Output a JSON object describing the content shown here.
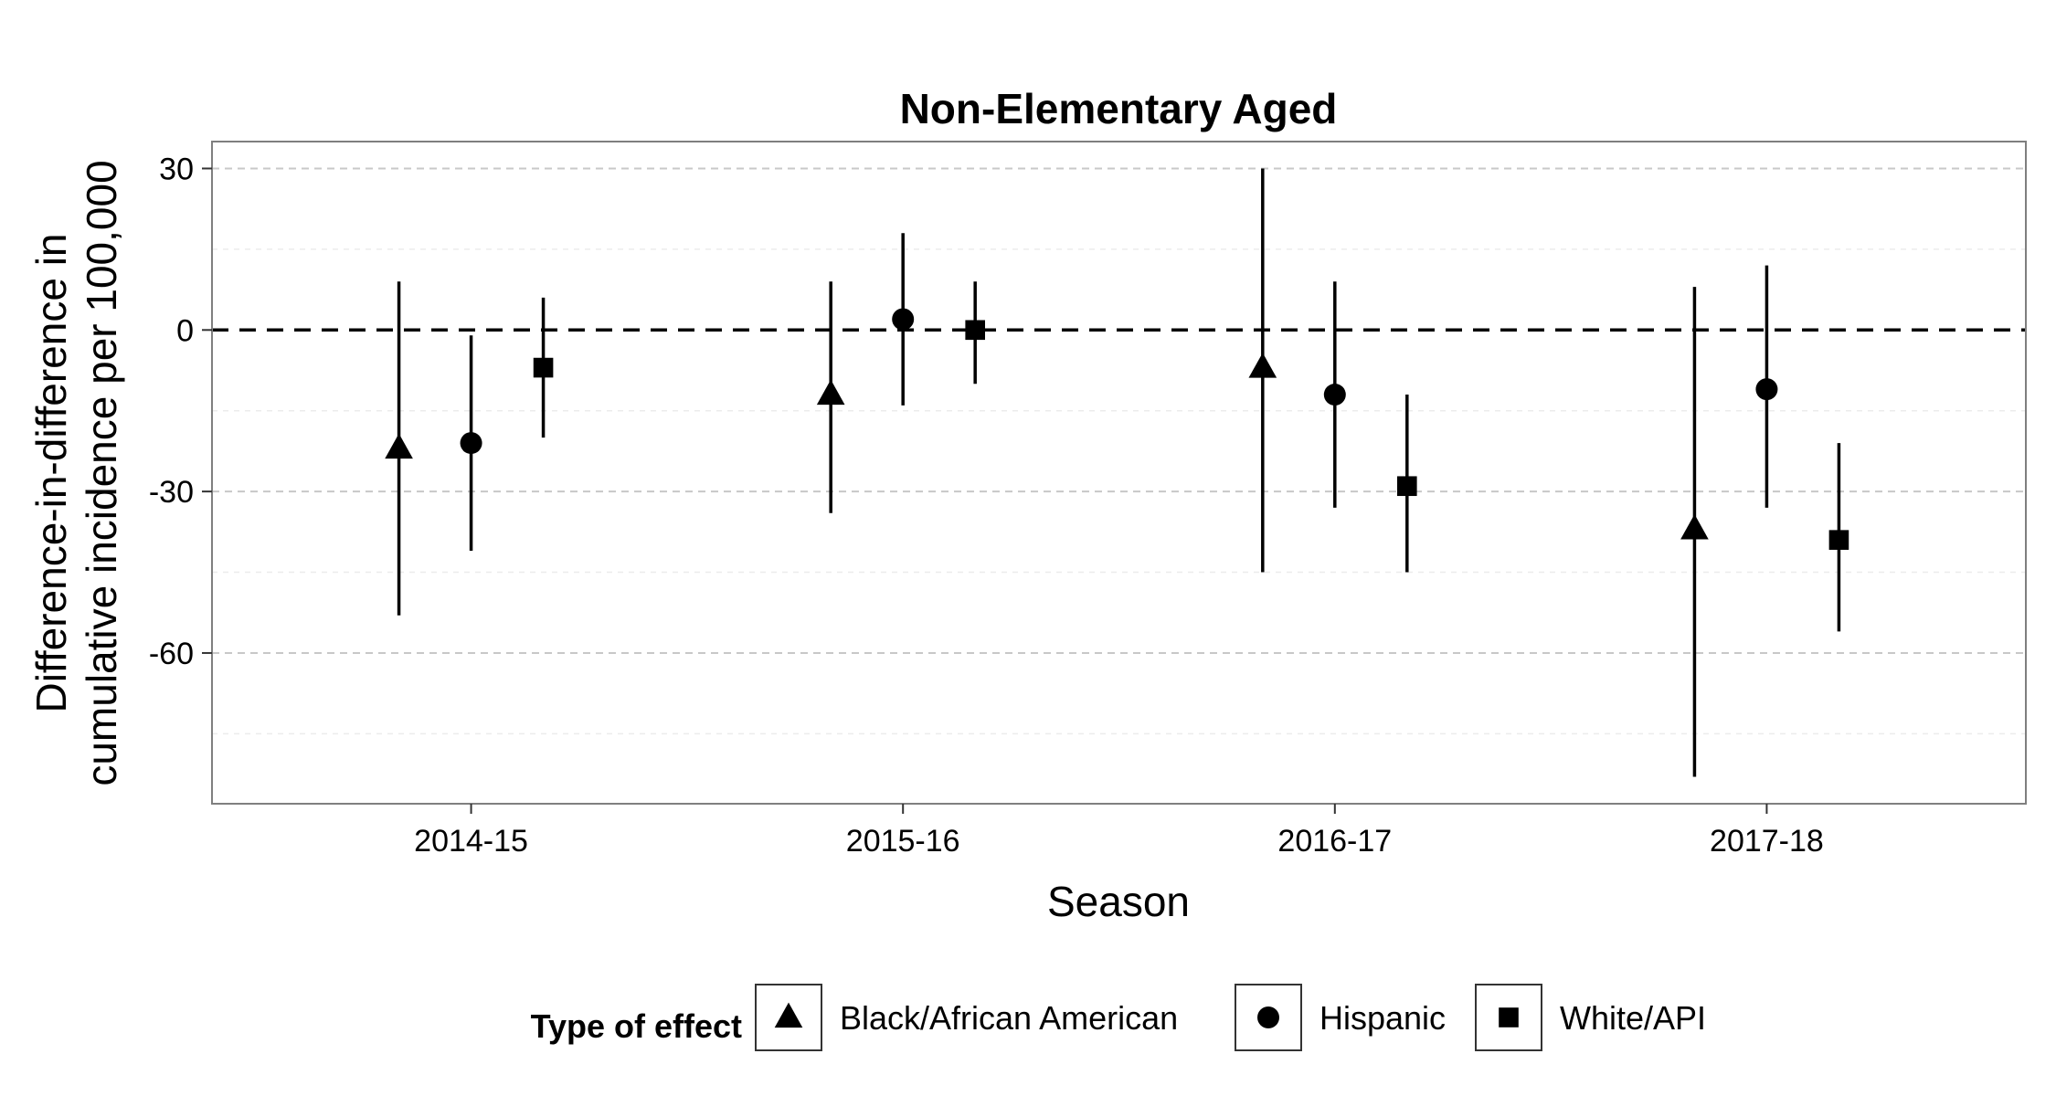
{
  "chart_data": {
    "type": "scatter",
    "title": "Non-Elementary Aged",
    "xlabel": "Season",
    "ylabel": [
      "Difference-in-difference in",
      "cumulative incidence per 100,000"
    ],
    "categories": [
      "2014-15",
      "2015-16",
      "2016-17",
      "2017-18"
    ],
    "ylim": [
      -88,
      35
    ],
    "yticks": [
      30,
      0,
      -30,
      -60
    ],
    "grid": true,
    "reference_line": 0,
    "legend": {
      "title": "Type of effect",
      "placement": "bottom"
    },
    "series": [
      {
        "name": "Black/African American",
        "marker": "triangle",
        "values": [
          -22,
          -12,
          -7,
          -37
        ],
        "lower": [
          -53,
          -34,
          -45,
          -83
        ],
        "upper": [
          9,
          9,
          30,
          8
        ]
      },
      {
        "name": "Hispanic",
        "marker": "circle",
        "values": [
          -21,
          2,
          -12,
          -11
        ],
        "lower": [
          -41,
          -14,
          -33,
          -33
        ],
        "upper": [
          -1,
          18,
          9,
          12
        ]
      },
      {
        "name": "White/API",
        "marker": "square",
        "values": [
          -7,
          0,
          -29,
          -39
        ],
        "lower": [
          -20,
          -10,
          -45,
          -56
        ],
        "upper": [
          6,
          9,
          -12,
          -21
        ]
      }
    ]
  }
}
